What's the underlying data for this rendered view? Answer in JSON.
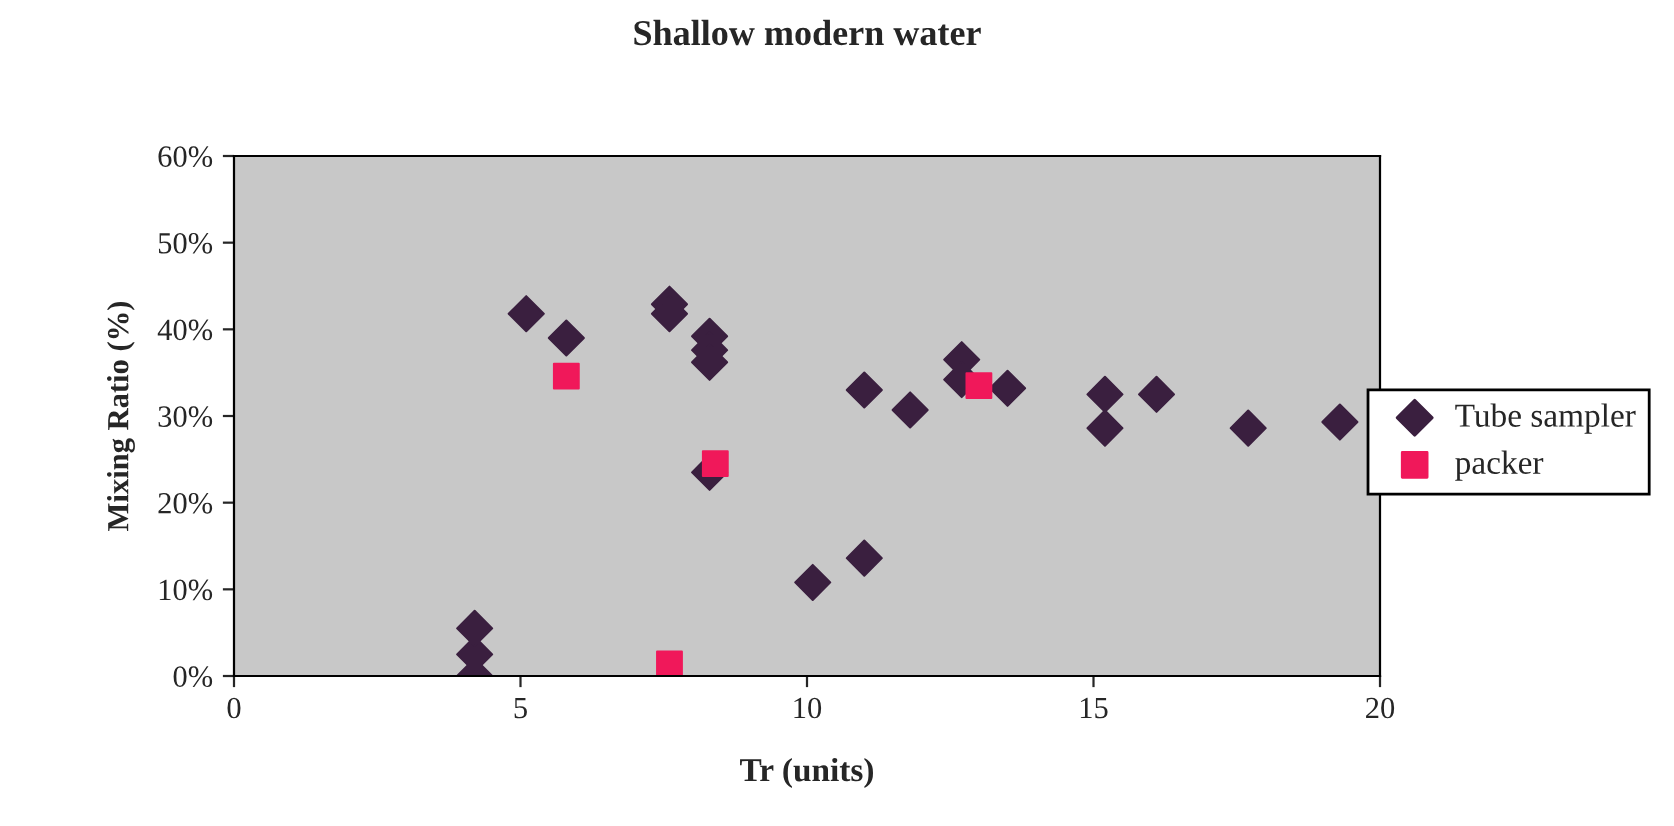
{
  "chart_data": {
    "type": "scatter",
    "title": "Shallow modern water",
    "xlabel": "Tr (units)",
    "ylabel": "Mixing Ratio (%)",
    "xlim": [
      0,
      20
    ],
    "xticks": [
      0,
      5,
      10,
      15,
      20
    ],
    "ylim": [
      0,
      60
    ],
    "yticks": [
      {
        "value": 0,
        "label": "0%"
      },
      {
        "value": 10,
        "label": "10%"
      },
      {
        "value": 20,
        "label": "20%"
      },
      {
        "value": 30,
        "label": "30%"
      },
      {
        "value": 40,
        "label": "40%"
      },
      {
        "value": 50,
        "label": "50%"
      },
      {
        "value": 60,
        "label": "60%"
      }
    ],
    "grid": false,
    "legend": "right",
    "series": [
      {
        "name": "Tube sampler",
        "color": "#3a1f3f",
        "marker": "diamond",
        "x": [
          4.2,
          4.2,
          4.2,
          5.1,
          5.8,
          7.6,
          7.6,
          8.3,
          8.3,
          8.3,
          8.3,
          10.1,
          11.0,
          11.0,
          11.8,
          12.7,
          12.7,
          13.5,
          15.2,
          15.2,
          16.1,
          17.7,
          19.3
        ],
        "values": [
          0,
          2.5,
          5.5,
          41.8,
          39.0,
          42.9,
          41.8,
          39.2,
          37.6,
          36.2,
          23.5,
          10.8,
          13.6,
          33.0,
          30.7,
          36.5,
          34.2,
          33.2,
          32.5,
          28.6,
          32.5,
          28.6,
          29.3
        ]
      },
      {
        "name": "packer",
        "color": "#f0185a",
        "marker": "square",
        "x": [
          5.8,
          8.4,
          7.6,
          13.0
        ],
        "values": [
          34.6,
          24.5,
          1.4,
          33.5
        ]
      }
    ]
  }
}
